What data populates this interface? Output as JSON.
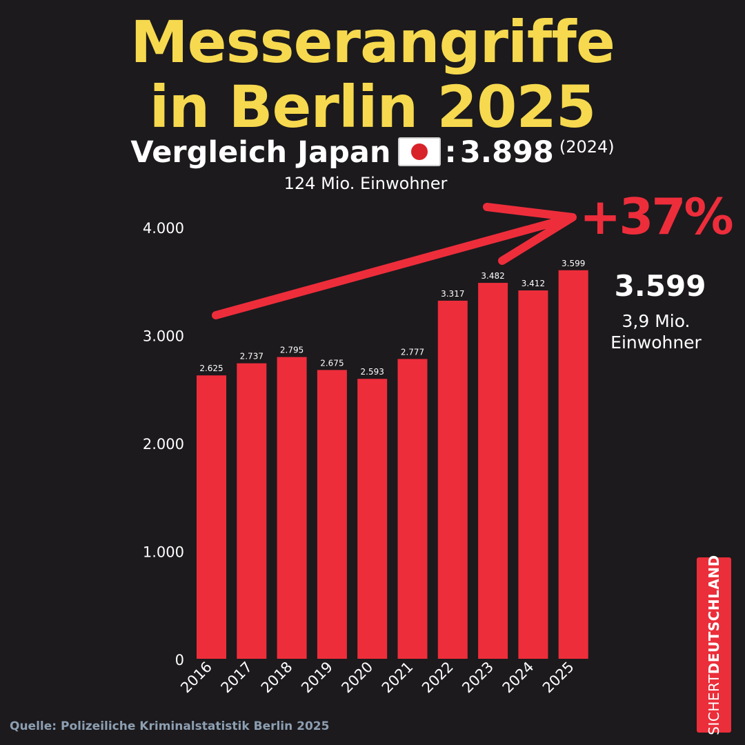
{
  "header": {
    "title_line1": "Messerangriffe",
    "title_line2": "in Berlin 2025",
    "compare_label": "Vergleich Japan",
    "compare_value": "3.898",
    "compare_year": "(2024)",
    "japan_population": "124 Mio. Einwohner"
  },
  "highlight": {
    "percent_change": "+37%",
    "berlin_value": "3.599",
    "berlin_population_line1": "3,9 Mio.",
    "berlin_population_line2": "Einwohner"
  },
  "brand": {
    "part1": "SICHERT",
    "part2": "DEUTSCHLAND"
  },
  "footer": {
    "source": "Quelle: Polizeiliche Kriminalstatistik Berlin 2025"
  },
  "colors": {
    "background": "#1c1a1d",
    "title": "#f6d94e",
    "bar": "#ee2d3b",
    "text": "#ffffff",
    "source": "#8d9fb2"
  },
  "icons": {
    "flag": "japan-flag-icon",
    "arrow": "trend-arrow-icon"
  },
  "chart_data": {
    "type": "bar",
    "categories": [
      "2016",
      "2017",
      "2018",
      "2019",
      "2020",
      "2021",
      "2022",
      "2023",
      "2024",
      "2025"
    ],
    "values": [
      2625,
      2737,
      2795,
      2675,
      2593,
      2777,
      3317,
      3482,
      3412,
      3599
    ],
    "value_labels": [
      "2.625",
      "2.737",
      "2.795",
      "2.675",
      "2.593",
      "2.777",
      "3.317",
      "3.482",
      "3.412",
      "3.599"
    ],
    "ylim": [
      0,
      4000
    ],
    "yticks": [
      0,
      1000,
      2000,
      3000,
      4000
    ],
    "ytick_labels": [
      "0",
      "1.000",
      "2.000",
      "3.000",
      "4.000"
    ],
    "grid": false,
    "legend": "none"
  }
}
